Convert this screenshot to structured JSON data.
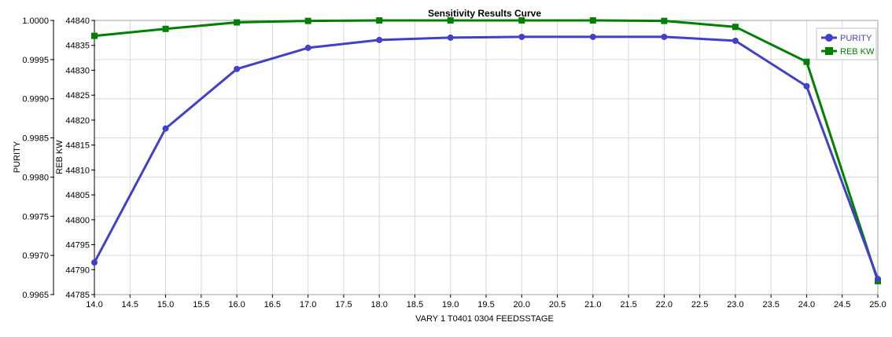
{
  "chart_data": {
    "type": "line",
    "title": "Sensitivity Results Curve",
    "xlabel": "VARY   1 T0401 0304 FEEDSSTAGE",
    "x": [
      14,
      15,
      16,
      17,
      18,
      19,
      20,
      21,
      22,
      23,
      24,
      25
    ],
    "xlim": [
      14,
      25
    ],
    "x_ticks": [
      "14.0",
      "14.5",
      "15.0",
      "15.5",
      "16.0",
      "16.5",
      "17.0",
      "17.5",
      "18.0",
      "18.5",
      "19.0",
      "19.5",
      "20.0",
      "20.5",
      "21.0",
      "21.5",
      "22.0",
      "22.5",
      "23.0",
      "23.5",
      "24.0",
      "24.5",
      "25.0"
    ],
    "y_axes": [
      {
        "label": "PURITY",
        "ylim": [
          0.9965,
          1.0
        ],
        "ticks": [
          "1.0000",
          "0.9995",
          "0.9990",
          "0.9985",
          "0.9980",
          "0.9975",
          "0.9970",
          "0.9965"
        ]
      },
      {
        "label": "REB KW",
        "ylim": [
          44785,
          44840
        ],
        "ticks": [
          "44840",
          "44835",
          "44830",
          "44825",
          "44820",
          "44815",
          "44810",
          "44805",
          "44800",
          "44795",
          "44790",
          "44785"
        ]
      }
    ],
    "series": [
      {
        "name": "PURITY",
        "axis": 0,
        "color": "#4040c8",
        "marker": "circle",
        "values": [
          0.99691,
          0.99862,
          0.99938,
          0.99965,
          0.99975,
          0.99978,
          0.99979,
          0.99979,
          0.99979,
          0.99974,
          0.99916,
          0.9967
        ]
      },
      {
        "name": "REB KW",
        "axis": 1,
        "color": "#008000",
        "marker": "square",
        "values": [
          44836.9,
          44838.3,
          44839.6,
          44839.9,
          44840.0,
          44840.0,
          44840.0,
          44840.0,
          44839.9,
          44838.7,
          44831.7,
          44787.7
        ]
      }
    ],
    "grid": true,
    "legend": "top-right"
  }
}
